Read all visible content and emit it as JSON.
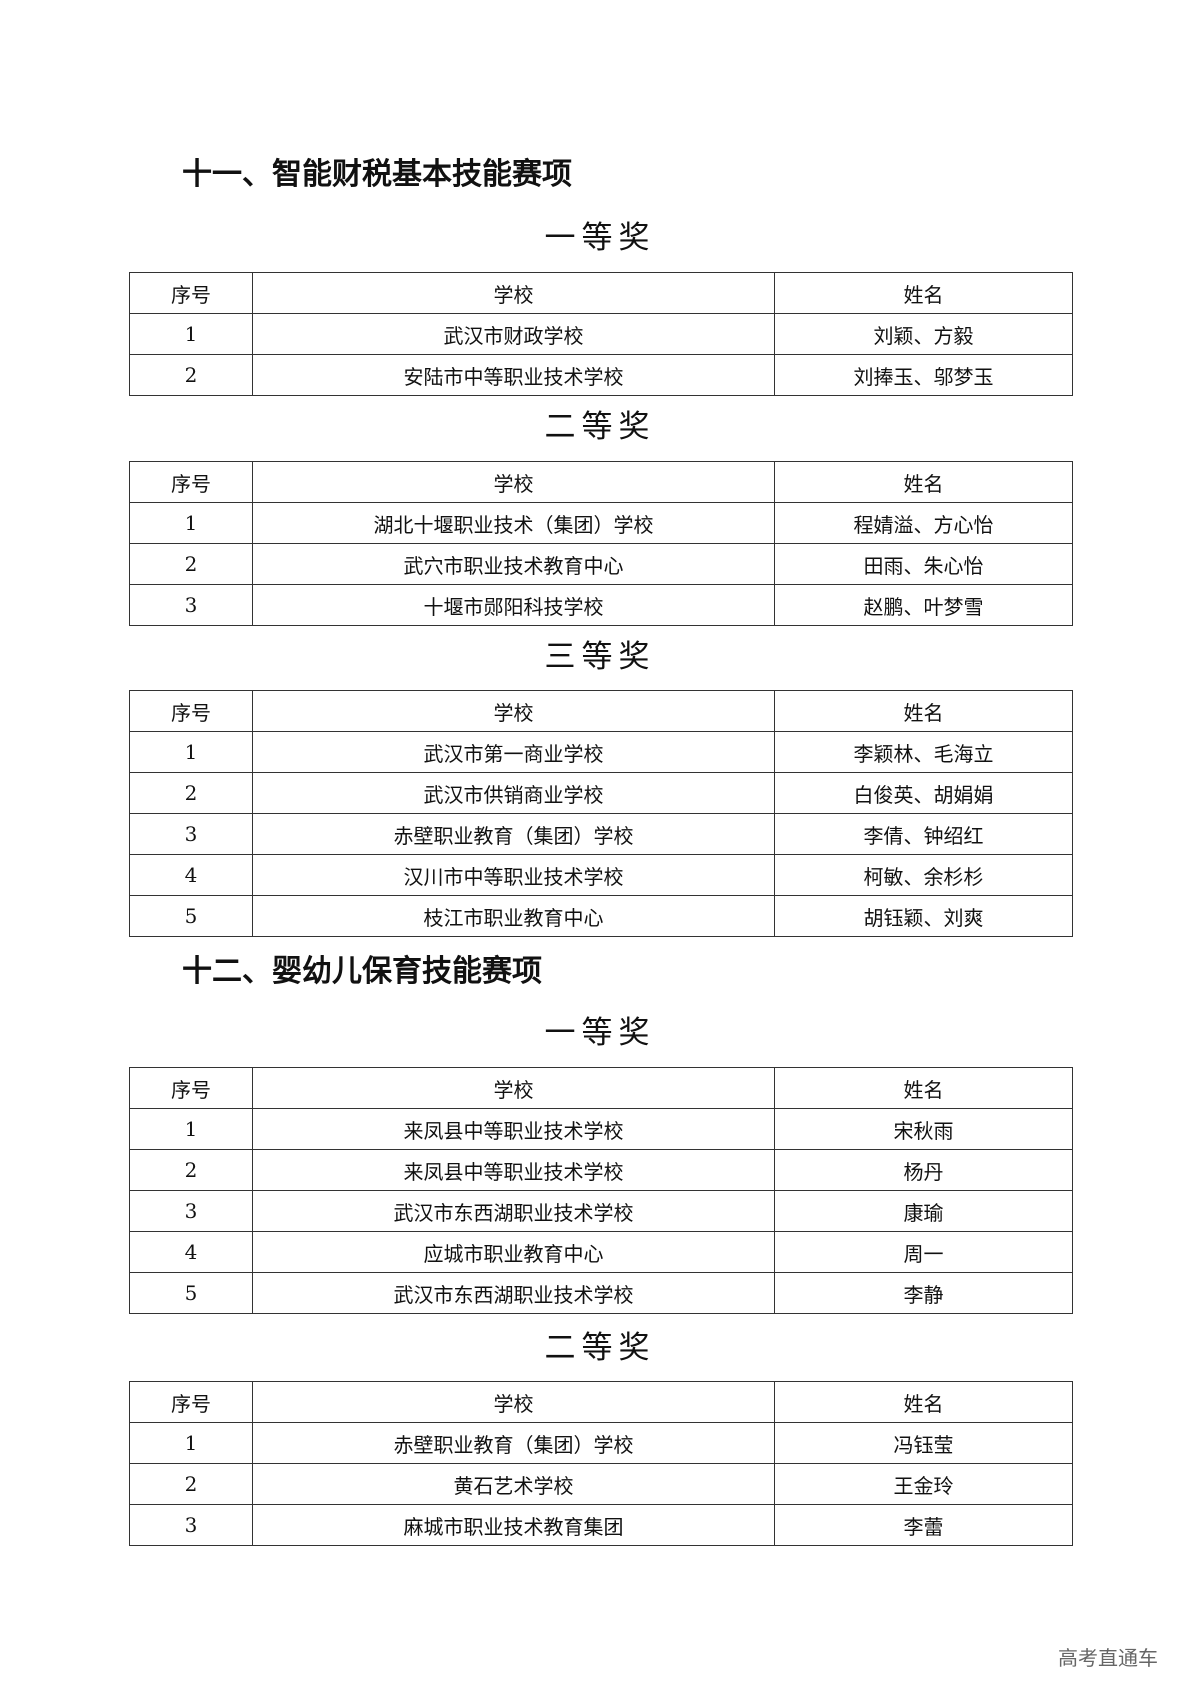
{
  "columns": {
    "no": "序号",
    "school": "学校",
    "name": "姓名"
  },
  "sections": [
    {
      "title": "十一、智能财税基本技能赛项",
      "awards": [
        {
          "label": "一等奖",
          "rows": [
            {
              "no": "1",
              "school": "武汉市财政学校",
              "name": "刘颖、方毅"
            },
            {
              "no": "2",
              "school": "安陆市中等职业技术学校",
              "name": "刘捧玉、邬梦玉"
            }
          ]
        },
        {
          "label": "二等奖",
          "rows": [
            {
              "no": "1",
              "school": "湖北十堰职业技术（集团）学校",
              "name": "程婧溢、方心怡"
            },
            {
              "no": "2",
              "school": "武穴市职业技术教育中心",
              "name": "田雨、朱心怡"
            },
            {
              "no": "3",
              "school": "十堰市郧阳科技学校",
              "name": "赵鹏、叶梦雪"
            }
          ]
        },
        {
          "label": "三等奖",
          "rows": [
            {
              "no": "1",
              "school": "武汉市第一商业学校",
              "name": "李颖林、毛海立"
            },
            {
              "no": "2",
              "school": "武汉市供销商业学校",
              "name": "白俊英、胡娟娟"
            },
            {
              "no": "3",
              "school": "赤壁职业教育（集团）学校",
              "name": "李倩、钟绍红"
            },
            {
              "no": "4",
              "school": "汉川市中等职业技术学校",
              "name": "柯敏、余杉杉"
            },
            {
              "no": "5",
              "school": "枝江市职业教育中心",
              "name": "胡钰颖、刘爽"
            }
          ]
        }
      ]
    },
    {
      "title": "十二、婴幼儿保育技能赛项",
      "awards": [
        {
          "label": "一等奖",
          "rows": [
            {
              "no": "1",
              "school": "来凤县中等职业技术学校",
              "name": "宋秋雨"
            },
            {
              "no": "2",
              "school": "来凤县中等职业技术学校",
              "name": "杨丹"
            },
            {
              "no": "3",
              "school": "武汉市东西湖职业技术学校",
              "name": "康瑜"
            },
            {
              "no": "4",
              "school": "应城市职业教育中心",
              "name": "周一"
            },
            {
              "no": "5",
              "school": "武汉市东西湖职业技术学校",
              "name": "李静"
            }
          ]
        },
        {
          "label": "二等奖",
          "rows": [
            {
              "no": "1",
              "school": "赤壁职业教育（集团）学校",
              "name": "冯钰莹"
            },
            {
              "no": "2",
              "school": "黄石艺术学校",
              "name": "王金玲"
            },
            {
              "no": "3",
              "school": "麻城市职业技术教育集团",
              "name": "李蕾"
            }
          ]
        }
      ]
    }
  ],
  "watermark": "高考直通车"
}
